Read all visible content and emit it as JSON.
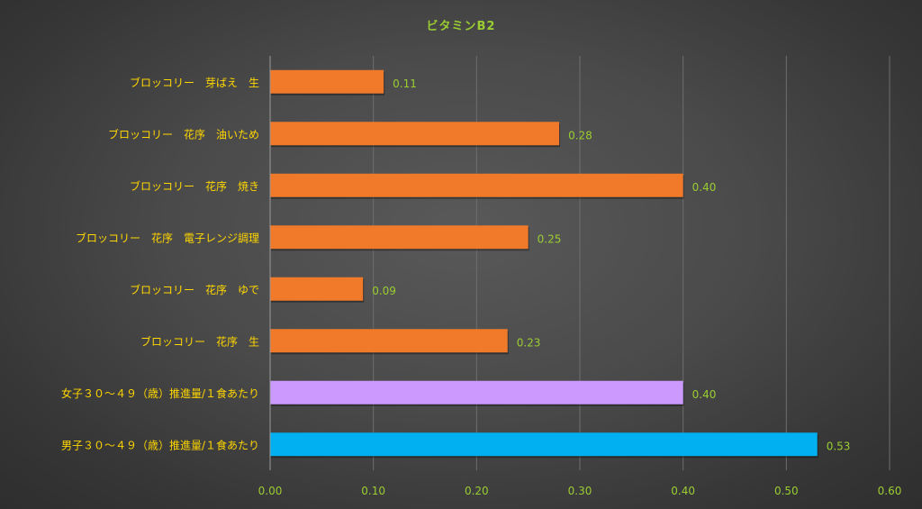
{
  "chart_data": {
    "type": "bar",
    "orientation": "horizontal",
    "title": "ビタミンB2",
    "categories": [
      "ブロッコリー　芽ばえ　生",
      "ブロッコリー　花序　油いため",
      "ブロッコリー　花序　焼き",
      "ブロッコリー　花序　電子レンジ調理",
      "ブロッコリー　花序　ゆで",
      "ブロッコリー　花序　生",
      "女子３０～４９（歳）推進量/１食あたり",
      "男子３０～４９（歳）推進量/１食あたり"
    ],
    "values": [
      0.11,
      0.28,
      0.4,
      0.25,
      0.09,
      0.23,
      0.4,
      0.53
    ],
    "value_labels": [
      "0.11",
      "0.28",
      "0.40",
      "0.25",
      "0.09",
      "0.23",
      "0.40",
      "0.53"
    ],
    "xlim": [
      0,
      0.6
    ],
    "xticks": [
      "0.00",
      "0.10",
      "0.20",
      "0.30",
      "0.40",
      "0.50",
      "0.60"
    ],
    "xtick_values": [
      0,
      0.1,
      0.2,
      0.3,
      0.4,
      0.5,
      0.6
    ],
    "grid": "vertical",
    "legend": "none",
    "bar_colors": [
      "#f07a2a",
      "#f07a2a",
      "#f07a2a",
      "#f07a2a",
      "#f07a2a",
      "#f07a2a",
      "#cc99ff",
      "#00b0f0"
    ],
    "colors": {
      "title": "#9acd32",
      "category_label": "#ffd700",
      "value_label": "#9acd32",
      "tick_label": "#9acd32",
      "gridline": "#6e6e6e",
      "axis": "#9a9a9a"
    }
  }
}
